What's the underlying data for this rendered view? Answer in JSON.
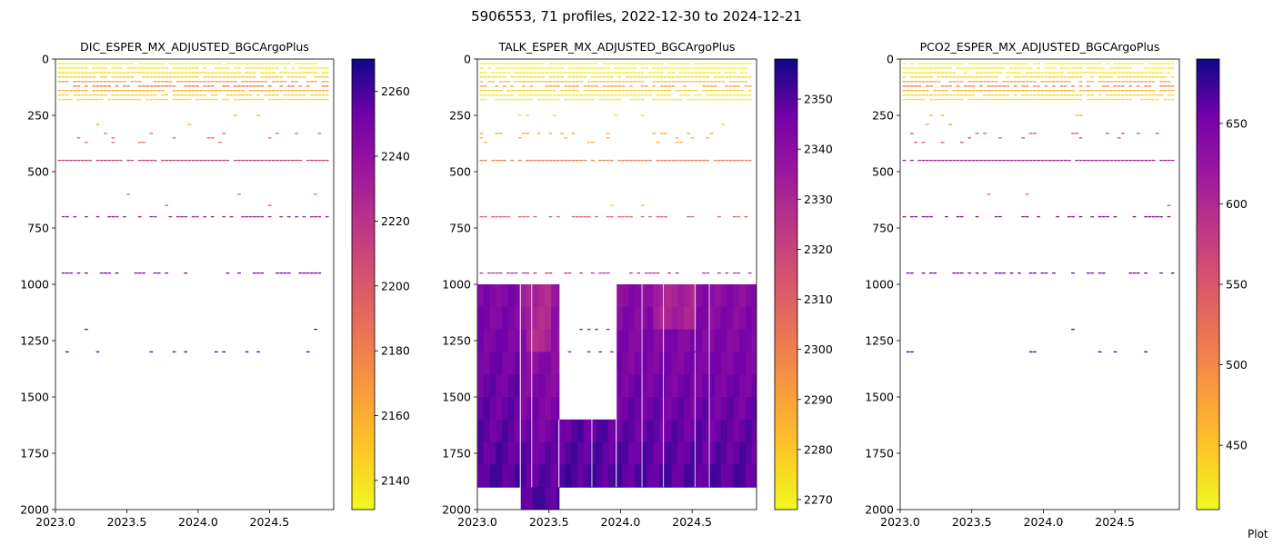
{
  "figure": {
    "suptitle": "5906553, 71 profiles, 2022-12-30 to 2024-12-21",
    "footer_text": "Plot"
  },
  "chart_data": [
    {
      "type": "heatmap",
      "title": "DIC_ESPER_MX_ADJUSTED_BGCArgoPlus",
      "xlabel": "",
      "ylabel": "",
      "xlim": [
        2023.0,
        2024.95
      ],
      "ylim": [
        2000,
        0
      ],
      "y_inverted": true,
      "x_ticks": [
        "2023.0",
        "2023.5",
        "2024.0",
        "2024.5"
      ],
      "y_ticks": [
        "0",
        "250",
        "500",
        "750",
        "1000",
        "1250",
        "1500",
        "1750",
        "2000"
      ],
      "colormap": "plasma_r",
      "colorbar": {
        "range": [
          2131,
          2270
        ],
        "ticks": [
          "2140",
          "2160",
          "2180",
          "2200",
          "2220",
          "2240",
          "2260"
        ]
      },
      "profiles": {
        "count": 71,
        "date_range": [
          "2023-01-12",
          "2024-11-26"
        ]
      },
      "deep_fill": null,
      "layers": [
        {
          "depth": 20,
          "value": 2134,
          "coverage": 0.9
        },
        {
          "depth": 40,
          "value": 2138,
          "coverage": 0.9
        },
        {
          "depth": 60,
          "value": 2141,
          "coverage": 0.9
        },
        {
          "depth": 80,
          "value": 2150,
          "coverage": 0.9
        },
        {
          "depth": 100,
          "value": 2165,
          "coverage": 0.85
        },
        {
          "depth": 120,
          "value": 2184,
          "coverage": 0.6
        },
        {
          "depth": 140,
          "value": 2158,
          "coverage": 0.9
        },
        {
          "depth": 160,
          "value": 2146,
          "coverage": 0.9
        },
        {
          "depth": 180,
          "value": 2140,
          "coverage": 0.9
        },
        {
          "depth": 250,
          "value": 2162,
          "coverage": 0.03
        },
        {
          "depth": 290,
          "value": 2168,
          "coverage": 0.03
        },
        {
          "depth": 330,
          "value": 2193,
          "coverage": 0.12
        },
        {
          "depth": 350,
          "value": 2193,
          "coverage": 0.12
        },
        {
          "depth": 370,
          "value": 2191,
          "coverage": 0.05
        },
        {
          "depth": 450,
          "value": 2212,
          "coverage": 0.9
        },
        {
          "depth": 600,
          "value": 2190,
          "coverage": 0.02
        },
        {
          "depth": 650,
          "value": 2198,
          "coverage": 0.02
        },
        {
          "depth": 700,
          "value": 2236,
          "coverage": 0.55
        },
        {
          "depth": 950,
          "value": 2252,
          "coverage": 0.45
        },
        {
          "depth": 1000,
          "value": 2246,
          "coverage": 0.02
        },
        {
          "depth": 1200,
          "value": 2255,
          "coverage": 0.04
        },
        {
          "depth": 1300,
          "value": 2259,
          "coverage": 0.1
        }
      ]
    },
    {
      "type": "heatmap",
      "title": "TALK_ESPER_MX_ADJUSTED_BGCArgoPlus",
      "xlabel": "",
      "ylabel": "",
      "xlim": [
        2023.0,
        2024.95
      ],
      "ylim": [
        2000,
        0
      ],
      "y_inverted": true,
      "x_ticks": [
        "2023.0",
        "2023.5",
        "2024.0",
        "2024.5"
      ],
      "y_ticks": [
        "0",
        "250",
        "500",
        "750",
        "1000",
        "1250",
        "1500",
        "1750",
        "2000"
      ],
      "colormap": "plasma_r",
      "colorbar": {
        "range": [
          2268,
          2358
        ],
        "ticks": [
          "2270",
          "2280",
          "2290",
          "2300",
          "2310",
          "2320",
          "2330",
          "2340",
          "2350"
        ]
      },
      "profiles": {
        "count": 71,
        "date_range": [
          "2023-01-12",
          "2024-11-26"
        ]
      },
      "deep_fill": {
        "top_depth": 1000,
        "segments": [
          {
            "from": 2023.0,
            "to": 2023.3,
            "bottom": 1900,
            "value": 2343
          },
          {
            "from": 2023.3,
            "to": 2023.57,
            "bottom": 2000,
            "value": 2336
          },
          {
            "from": 2023.57,
            "to": 2023.97,
            "top": 1600,
            "bottom": 1900,
            "value": 2344
          },
          {
            "from": 2023.97,
            "to": 2024.95,
            "bottom": 1900,
            "value": 2341
          }
        ],
        "cell_years": 0.043,
        "depth_step": 100,
        "deep_value": 2352,
        "shallow_value": 2330
      },
      "layers": [
        {
          "depth": 20,
          "value": 2270,
          "coverage": 0.9
        },
        {
          "depth": 40,
          "value": 2270,
          "coverage": 0.9
        },
        {
          "depth": 60,
          "value": 2271,
          "coverage": 0.9
        },
        {
          "depth": 80,
          "value": 2277,
          "coverage": 0.9
        },
        {
          "depth": 100,
          "value": 2281,
          "coverage": 0.85
        },
        {
          "depth": 120,
          "value": 2291,
          "coverage": 0.6
        },
        {
          "depth": 140,
          "value": 2276,
          "coverage": 0.9
        },
        {
          "depth": 160,
          "value": 2272,
          "coverage": 0.9
        },
        {
          "depth": 180,
          "value": 2270,
          "coverage": 0.9
        },
        {
          "depth": 250,
          "value": 2278,
          "coverage": 0.03
        },
        {
          "depth": 290,
          "value": 2282,
          "coverage": 0.03
        },
        {
          "depth": 330,
          "value": 2288,
          "coverage": 0.12
        },
        {
          "depth": 350,
          "value": 2288,
          "coverage": 0.12
        },
        {
          "depth": 370,
          "value": 2286,
          "coverage": 0.05
        },
        {
          "depth": 450,
          "value": 2300,
          "coverage": 0.9
        },
        {
          "depth": 600,
          "value": 2280,
          "coverage": 0.02
        },
        {
          "depth": 650,
          "value": 2284,
          "coverage": 0.02
        },
        {
          "depth": 700,
          "value": 2310,
          "coverage": 0.55
        },
        {
          "depth": 950,
          "value": 2328,
          "coverage": 0.45
        },
        {
          "depth": 1200,
          "value": 2335,
          "coverage": 0.04
        },
        {
          "depth": 1300,
          "value": 2340,
          "coverage": 0.1
        }
      ]
    },
    {
      "type": "heatmap",
      "title": "PCO2_ESPER_MX_ADJUSTED_BGCArgoPlus",
      "xlabel": "",
      "ylabel": "",
      "xlim": [
        2023.0,
        2024.95
      ],
      "ylim": [
        2000,
        0
      ],
      "y_inverted": true,
      "x_ticks": [
        "2023.0",
        "2023.5",
        "2024.0",
        "2024.5"
      ],
      "y_ticks": [
        "0",
        "250",
        "500",
        "750",
        "1000",
        "1250",
        "1500",
        "1750",
        "2000"
      ],
      "colormap": "plasma_r",
      "colorbar": {
        "range": [
          410,
          690
        ],
        "ticks": [
          "450",
          "500",
          "550",
          "600",
          "650"
        ]
      },
      "profiles": {
        "count": 71,
        "date_range": [
          "2023-01-12",
          "2024-11-26"
        ]
      },
      "deep_fill": null,
      "layers": [
        {
          "depth": 20,
          "value": 416,
          "coverage": 0.9
        },
        {
          "depth": 40,
          "value": 420,
          "coverage": 0.9
        },
        {
          "depth": 60,
          "value": 425,
          "coverage": 0.9
        },
        {
          "depth": 80,
          "value": 440,
          "coverage": 0.9
        },
        {
          "depth": 100,
          "value": 470,
          "coverage": 0.85
        },
        {
          "depth": 120,
          "value": 510,
          "coverage": 0.6
        },
        {
          "depth": 140,
          "value": 460,
          "coverage": 0.9
        },
        {
          "depth": 160,
          "value": 435,
          "coverage": 0.9
        },
        {
          "depth": 180,
          "value": 425,
          "coverage": 0.9
        },
        {
          "depth": 250,
          "value": 470,
          "coverage": 0.03
        },
        {
          "depth": 290,
          "value": 490,
          "coverage": 0.03
        },
        {
          "depth": 330,
          "value": 560,
          "coverage": 0.12
        },
        {
          "depth": 350,
          "value": 560,
          "coverage": 0.12
        },
        {
          "depth": 370,
          "value": 555,
          "coverage": 0.05
        },
        {
          "depth": 450,
          "value": 610,
          "coverage": 0.9
        },
        {
          "depth": 600,
          "value": 540,
          "coverage": 0.02
        },
        {
          "depth": 650,
          "value": 560,
          "coverage": 0.02
        },
        {
          "depth": 700,
          "value": 640,
          "coverage": 0.55
        },
        {
          "depth": 950,
          "value": 660,
          "coverage": 0.45
        },
        {
          "depth": 1000,
          "value": 650,
          "coverage": 0.02
        },
        {
          "depth": 1200,
          "value": 668,
          "coverage": 0.04
        },
        {
          "depth": 1300,
          "value": 675,
          "coverage": 0.1
        }
      ]
    }
  ]
}
